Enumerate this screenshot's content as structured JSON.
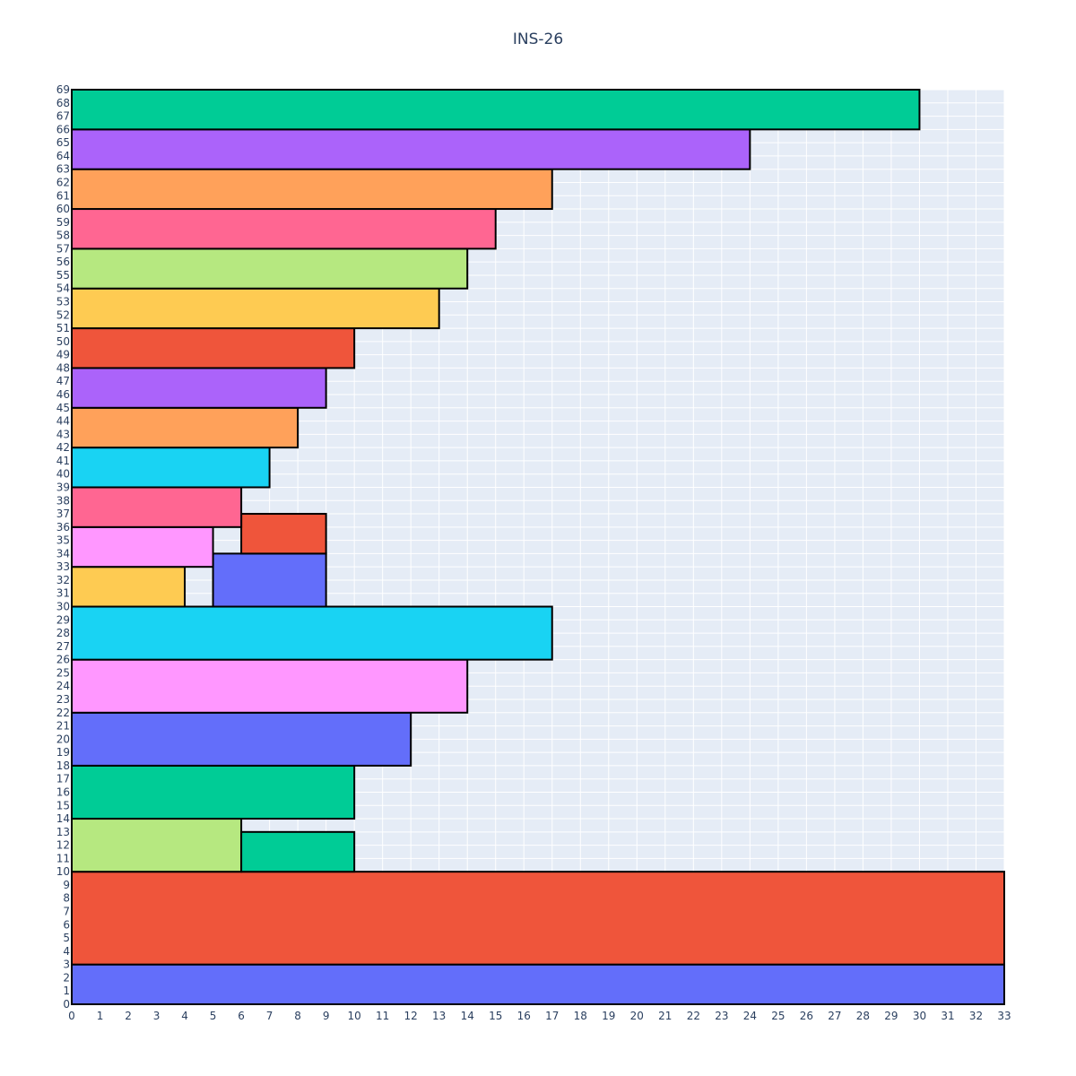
{
  "chart_data": {
    "type": "bar",
    "title": "INS-26",
    "xlabel": "",
    "ylabel": "",
    "xlim": [
      0,
      33
    ],
    "ylim": [
      0,
      69
    ],
    "x_ticks": [
      0,
      1,
      2,
      3,
      4,
      5,
      6,
      7,
      8,
      9,
      10,
      11,
      12,
      13,
      14,
      15,
      16,
      17,
      18,
      19,
      20,
      21,
      22,
      23,
      24,
      25,
      26,
      27,
      28,
      29,
      30,
      31,
      32,
      33
    ],
    "y_ticks": [
      0,
      1,
      2,
      3,
      4,
      5,
      6,
      7,
      8,
      9,
      10,
      11,
      12,
      13,
      14,
      15,
      16,
      17,
      18,
      19,
      20,
      21,
      22,
      23,
      24,
      25,
      26,
      27,
      28,
      29,
      30,
      31,
      32,
      33,
      34,
      35,
      36,
      37,
      38,
      39,
      40,
      41,
      42,
      43,
      44,
      45,
      46,
      47,
      48,
      49,
      50,
      51,
      52,
      53,
      54,
      55,
      56,
      57,
      58,
      59,
      60,
      61,
      62,
      63,
      64,
      65,
      66,
      67,
      68,
      69
    ],
    "grid": true,
    "background": "#e5ecf6",
    "rectangles": [
      {
        "x0": 0,
        "x1": 33,
        "y0": 0,
        "y1": 3,
        "color": "#636efa"
      },
      {
        "x0": 0,
        "x1": 33,
        "y0": 3,
        "y1": 10,
        "color": "#ef553b"
      },
      {
        "x0": 0,
        "x1": 6,
        "y0": 10,
        "y1": 14,
        "color": "#b6e880"
      },
      {
        "x0": 6,
        "x1": 10,
        "y0": 10,
        "y1": 13,
        "color": "#00cc96"
      },
      {
        "x0": 0,
        "x1": 10,
        "y0": 14,
        "y1": 18,
        "color": "#00cc96"
      },
      {
        "x0": 0,
        "x1": 12,
        "y0": 18,
        "y1": 22,
        "color": "#636efa"
      },
      {
        "x0": 0,
        "x1": 14,
        "y0": 22,
        "y1": 26,
        "color": "#ff97ff"
      },
      {
        "x0": 0,
        "x1": 17,
        "y0": 26,
        "y1": 30,
        "color": "#19d3f3"
      },
      {
        "x0": 0,
        "x1": 4,
        "y0": 30,
        "y1": 33,
        "color": "#fecb52"
      },
      {
        "x0": 5,
        "x1": 9,
        "y0": 30,
        "y1": 34,
        "color": "#636efa"
      },
      {
        "x0": 0,
        "x1": 5,
        "y0": 33,
        "y1": 36,
        "color": "#ff97ff"
      },
      {
        "x0": 6,
        "x1": 9,
        "y0": 34,
        "y1": 37,
        "color": "#ef553b"
      },
      {
        "x0": 0,
        "x1": 6,
        "y0": 36,
        "y1": 39,
        "color": "#ff6692"
      },
      {
        "x0": 0,
        "x1": 7,
        "y0": 39,
        "y1": 42,
        "color": "#19d3f3"
      },
      {
        "x0": 0,
        "x1": 8,
        "y0": 42,
        "y1": 45,
        "color": "#ffa15a"
      },
      {
        "x0": 0,
        "x1": 9,
        "y0": 45,
        "y1": 48,
        "color": "#ab63fa"
      },
      {
        "x0": 0,
        "x1": 10,
        "y0": 48,
        "y1": 51,
        "color": "#ef553b"
      },
      {
        "x0": 0,
        "x1": 13,
        "y0": 51,
        "y1": 54,
        "color": "#fecb52"
      },
      {
        "x0": 0,
        "x1": 14,
        "y0": 54,
        "y1": 57,
        "color": "#b6e880"
      },
      {
        "x0": 0,
        "x1": 15,
        "y0": 57,
        "y1": 60,
        "color": "#ff6692"
      },
      {
        "x0": 0,
        "x1": 17,
        "y0": 60,
        "y1": 63,
        "color": "#ffa15a"
      },
      {
        "x0": 0,
        "x1": 24,
        "y0": 63,
        "y1": 66,
        "color": "#ab63fa"
      },
      {
        "x0": 0,
        "x1": 30,
        "y0": 66,
        "y1": 69,
        "color": "#00cc96"
      }
    ]
  }
}
